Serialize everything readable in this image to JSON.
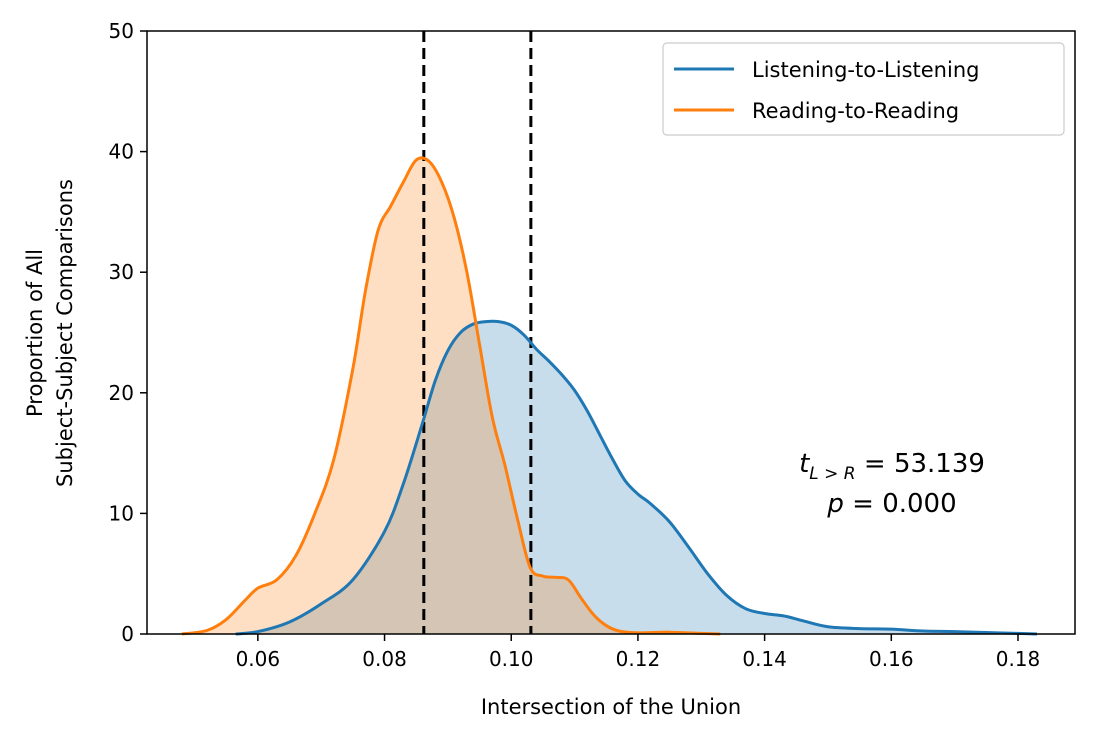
{
  "chart_data": {
    "type": "area",
    "xlabel": "Intersection of the Union",
    "ylabel_lines": [
      "Proportion of All",
      "Subject-Subject Comparisons"
    ],
    "xlim": [
      0.0425,
      0.189
    ],
    "ylim": [
      0,
      50
    ],
    "xticks": [
      0.06,
      0.08,
      0.1,
      0.12,
      0.14,
      0.16,
      0.18
    ],
    "xtick_labels": [
      "0.06",
      "0.08",
      "0.10",
      "0.12",
      "0.14",
      "0.16",
      "0.18"
    ],
    "yticks": [
      0,
      10,
      20,
      30,
      40,
      50
    ],
    "ytick_labels": [
      "0",
      "10",
      "20",
      "30",
      "40",
      "50"
    ],
    "legend_placement": "top-right",
    "grid": false,
    "vlines": [
      0.0862,
      0.1031
    ],
    "annotation": {
      "t_symbol": "t",
      "t_subscript": "L > R",
      "t_value": " = 53.139",
      "p_symbol": "p",
      "p_value": " = 0.000"
    },
    "series": [
      {
        "name": "Listening-to-Listening",
        "color": "#1f77b4",
        "fill": "#c5daec",
        "x": [
          0.0565,
          0.06,
          0.065,
          0.07,
          0.075,
          0.08,
          0.083,
          0.086,
          0.088,
          0.09,
          0.092,
          0.094,
          0.096,
          0.098,
          0.1,
          0.102,
          0.104,
          0.106,
          0.108,
          0.11,
          0.112,
          0.114,
          0.116,
          0.118,
          0.12,
          0.122,
          0.125,
          0.128,
          0.131,
          0.134,
          0.137,
          0.14,
          0.143,
          0.146,
          0.15,
          0.155,
          0.16,
          0.165,
          0.17,
          0.175,
          0.18,
          0.183
        ],
        "y": [
          0,
          0.2,
          1.0,
          2.5,
          4.5,
          8.5,
          12.5,
          17.5,
          21.0,
          23.5,
          25.0,
          25.7,
          25.9,
          25.9,
          25.6,
          24.8,
          23.6,
          22.6,
          21.5,
          20.2,
          18.5,
          16.5,
          14.5,
          12.7,
          11.6,
          10.8,
          9.3,
          7.2,
          5.0,
          3.2,
          2.1,
          1.7,
          1.5,
          1.1,
          0.6,
          0.45,
          0.4,
          0.25,
          0.2,
          0.12,
          0.05,
          0
        ]
      },
      {
        "name": "Reading-to-Reading",
        "color": "#ff7f0e",
        "fill": "#fedcbf",
        "x": [
          0.048,
          0.052,
          0.055,
          0.058,
          0.06,
          0.063,
          0.066,
          0.069,
          0.072,
          0.075,
          0.077,
          0.079,
          0.081,
          0.083,
          0.085,
          0.087,
          0.089,
          0.091,
          0.093,
          0.095,
          0.097,
          0.099,
          0.101,
          0.103,
          0.105,
          0.107,
          0.109,
          0.111,
          0.113,
          0.115,
          0.117,
          0.12,
          0.125,
          0.13,
          0.133
        ],
        "y": [
          0,
          0.3,
          1.2,
          2.8,
          3.8,
          4.5,
          6.5,
          10.0,
          14.5,
          22.0,
          28.5,
          33.5,
          35.5,
          37.5,
          39.3,
          39.2,
          37.5,
          34.5,
          30.0,
          24.0,
          18.0,
          14.0,
          9.5,
          5.5,
          4.8,
          4.7,
          4.5,
          3.0,
          1.6,
          0.7,
          0.25,
          0.1,
          0.15,
          0.05,
          0
        ]
      }
    ]
  }
}
